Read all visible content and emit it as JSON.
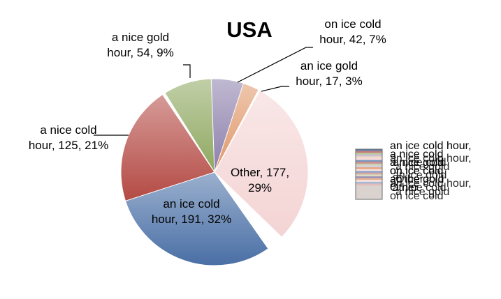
{
  "chart_data": {
    "type": "pie",
    "title": "USA",
    "slices": [
      {
        "label": "an ice cold hour",
        "value": 191,
        "percent": "32%",
        "color": "#4a6fa5"
      },
      {
        "label": "a nice cold hour",
        "value": 125,
        "percent": "21%",
        "color": "#b44a44"
      },
      {
        "label": "a nice gold hour",
        "value": 54,
        "percent": "9%",
        "color": "#8fa860"
      },
      {
        "label": "on ice cold hour",
        "value": 42,
        "percent": "7%",
        "color": "#8c7fab"
      },
      {
        "label": "an ice gold hour",
        "value": 17,
        "percent": "3%",
        "color": "#e0986a"
      },
      {
        "label": "Other",
        "value": 177,
        "percent": "29%",
        "color": "#f4d4d4"
      }
    ],
    "data_labels": [
      {
        "line1": "an ice cold",
        "line2": "hour, 191, 32%"
      },
      {
        "line1": "a nice cold",
        "line2": "hour, 125, 21%"
      },
      {
        "line1": "a nice gold",
        "line2": "hour, 54, 9%"
      },
      {
        "line1": "on ice cold",
        "line2": "hour, 42, 7%"
      },
      {
        "line1": "an ice gold",
        "line2": "hour, 17, 3%"
      },
      {
        "line1": "Other, 177,",
        "line2": "29%"
      }
    ],
    "legend": {
      "placement": "right",
      "entries": [
        "an ice cold hour,",
        "a nice cold",
        "a nice gold",
        "on ice cold",
        "an ice gold",
        "Other"
      ]
    }
  }
}
